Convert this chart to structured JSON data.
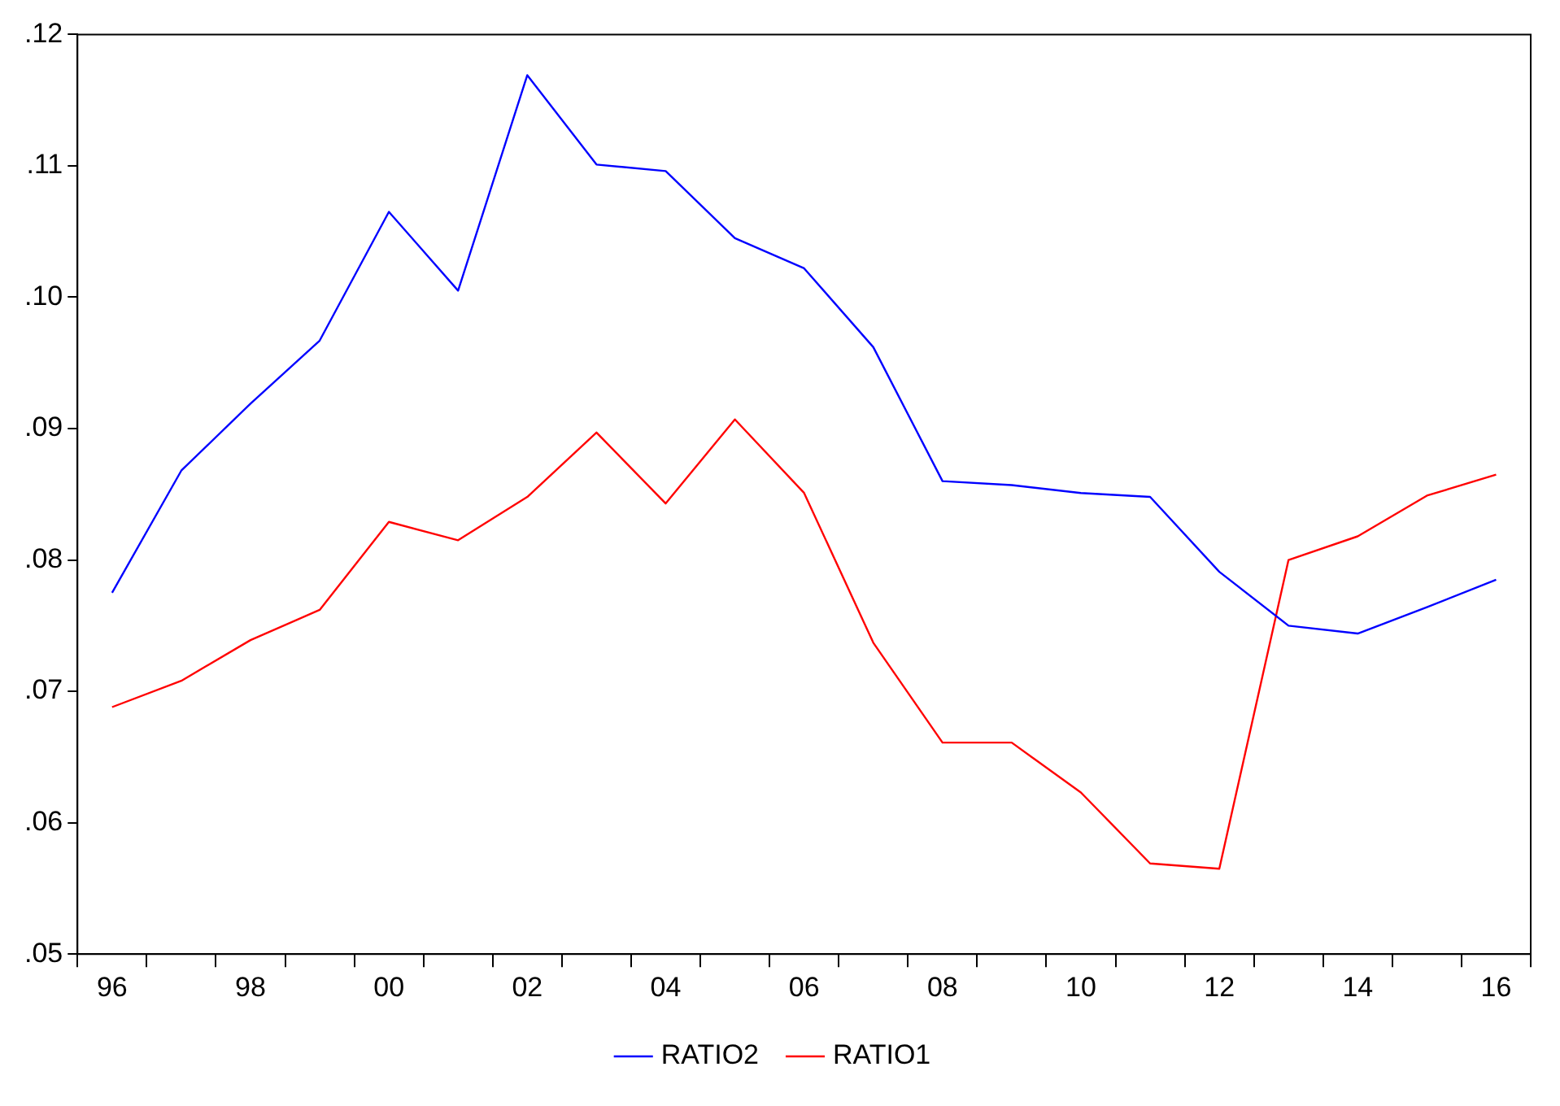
{
  "chart_data": {
    "type": "line",
    "categories": [
      "96",
      null,
      "98",
      null,
      "00",
      null,
      "02",
      null,
      "04",
      null,
      "06",
      null,
      "08",
      null,
      "10",
      null,
      "12",
      null,
      "14",
      null,
      "16"
    ],
    "series": [
      {
        "name": "RATIO2",
        "color": "#0000ff",
        "values": [
          0.0775,
          0.0868,
          0.0919,
          0.0967,
          0.1065,
          0.1005,
          0.1169,
          0.1101,
          0.1096,
          0.1045,
          0.1022,
          0.0962,
          0.086,
          0.0857,
          0.0851,
          0.0848,
          0.0791,
          0.075,
          0.0744,
          0.0764,
          0.0785
        ]
      },
      {
        "name": "RATIO1",
        "color": "#ff0000",
        "values": [
          0.0688,
          0.0708,
          0.0739,
          0.0762,
          0.0829,
          0.0815,
          0.0848,
          0.0897,
          0.0843,
          0.0907,
          0.0851,
          0.0737,
          0.0661,
          0.0661,
          0.0623,
          0.0569,
          0.0565,
          0.08,
          0.0818,
          0.0849,
          0.0865
        ]
      }
    ],
    "ylim": [
      0.05,
      0.12
    ],
    "yticks": [
      {
        "value": 0.05,
        "label": ".05"
      },
      {
        "value": 0.06,
        "label": ".06"
      },
      {
        "value": 0.07,
        "label": ".07"
      },
      {
        "value": 0.08,
        "label": ".08"
      },
      {
        "value": 0.09,
        "label": ".09"
      },
      {
        "value": 0.1,
        "label": ".10"
      },
      {
        "value": 0.11,
        "label": ".11"
      },
      {
        "value": 0.12,
        "label": ".12"
      }
    ],
    "grid": false,
    "legend": "bottom",
    "marker": "none",
    "line_style": "solid"
  }
}
